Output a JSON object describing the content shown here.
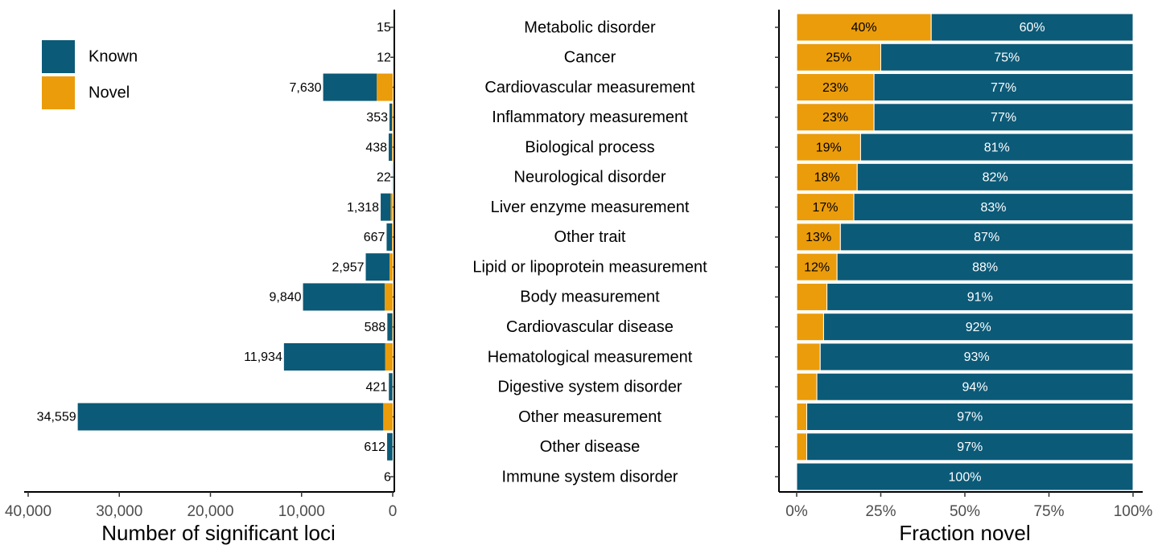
{
  "chart_data": [
    {
      "type": "bar",
      "orientation": "horizontal",
      "stacked": true,
      "x_label": "Number of significant loci",
      "categories": [
        "Metabolic disorder",
        "Cancer",
        "Cardiovascular measurement",
        "Inflammatory measurement",
        "Biological process",
        "Neurological disorder",
        "Liver enzyme measurement",
        "Other trait",
        "Lipid or lipoprotein measurement",
        "Body measurement",
        "Cardiovascular disease",
        "Hematological measurement",
        "Digestive system disorder",
        "Other measurement",
        "Other disease",
        "Immune system disorder"
      ],
      "series": [
        {
          "name": "Novel",
          "color": "#eb9c0a",
          "values": [
            6,
            3,
            1755,
            81,
            83,
            4,
            224,
            87,
            355,
            886,
            47,
            835,
            25,
            1037,
            18,
            0
          ]
        },
        {
          "name": "Known",
          "color": "#0b5a78",
          "values": [
            9,
            9,
            5875,
            272,
            355,
            18,
            1094,
            580,
            2602,
            8954,
            541,
            11099,
            396,
            33522,
            594,
            6
          ]
        }
      ],
      "totals": [
        15,
        12,
        7630,
        353,
        438,
        22,
        1318,
        667,
        2957,
        9840,
        588,
        11934,
        421,
        34559,
        612,
        6
      ],
      "total_labels": [
        "15",
        "12",
        "7,630",
        "353",
        "438",
        "22",
        "1,318",
        "667",
        "2,957",
        "9,840",
        "588",
        "11,934",
        "421",
        "34,559",
        "612",
        "6"
      ],
      "xlim": [
        40000,
        0
      ],
      "xticks": [
        {
          "value": 40000,
          "label": "40,000"
        },
        {
          "value": 30000,
          "label": "30,000"
        },
        {
          "value": 20000,
          "label": "20,000"
        },
        {
          "value": 10000,
          "label": "10,000"
        },
        0
      ],
      "legend": "top-left"
    },
    {
      "type": "bar",
      "orientation": "horizontal",
      "stacked": true,
      "x_label": "Fraction novel",
      "series": [
        {
          "color": "#eb9c0a",
          "values": [
            40,
            25,
            23,
            23,
            19,
            18,
            17,
            13,
            12,
            9,
            8,
            7,
            6,
            3,
            3,
            0
          ],
          "value_labels": [
            "40%",
            "25%",
            "23%",
            "23%",
            "19%",
            "18%",
            "17%",
            "13%",
            "12%",
            null,
            null,
            null,
            null,
            null,
            null,
            null
          ]
        },
        {
          "color": "#0b5a78",
          "values": [
            60,
            75,
            77,
            77,
            81,
            82,
            83,
            87,
            88,
            91,
            92,
            93,
            94,
            97,
            97,
            100
          ],
          "value_labels": [
            "60%",
            "75%",
            "77%",
            "77%",
            "81%",
            "82%",
            "83%",
            "87%",
            "88%",
            "91%",
            "92%",
            "93%",
            "94%",
            "97%",
            "97%",
            "100%"
          ]
        }
      ],
      "xlim": [
        0,
        100
      ],
      "xticks": [
        {
          "value": 0,
          "label": "0%"
        },
        {
          "value": 25,
          "label": "25%"
        },
        {
          "value": 50,
          "label": "50%"
        },
        {
          "value": 75,
          "label": "75%"
        },
        {
          "value": 100,
          "label": "100%"
        }
      ]
    }
  ]
}
